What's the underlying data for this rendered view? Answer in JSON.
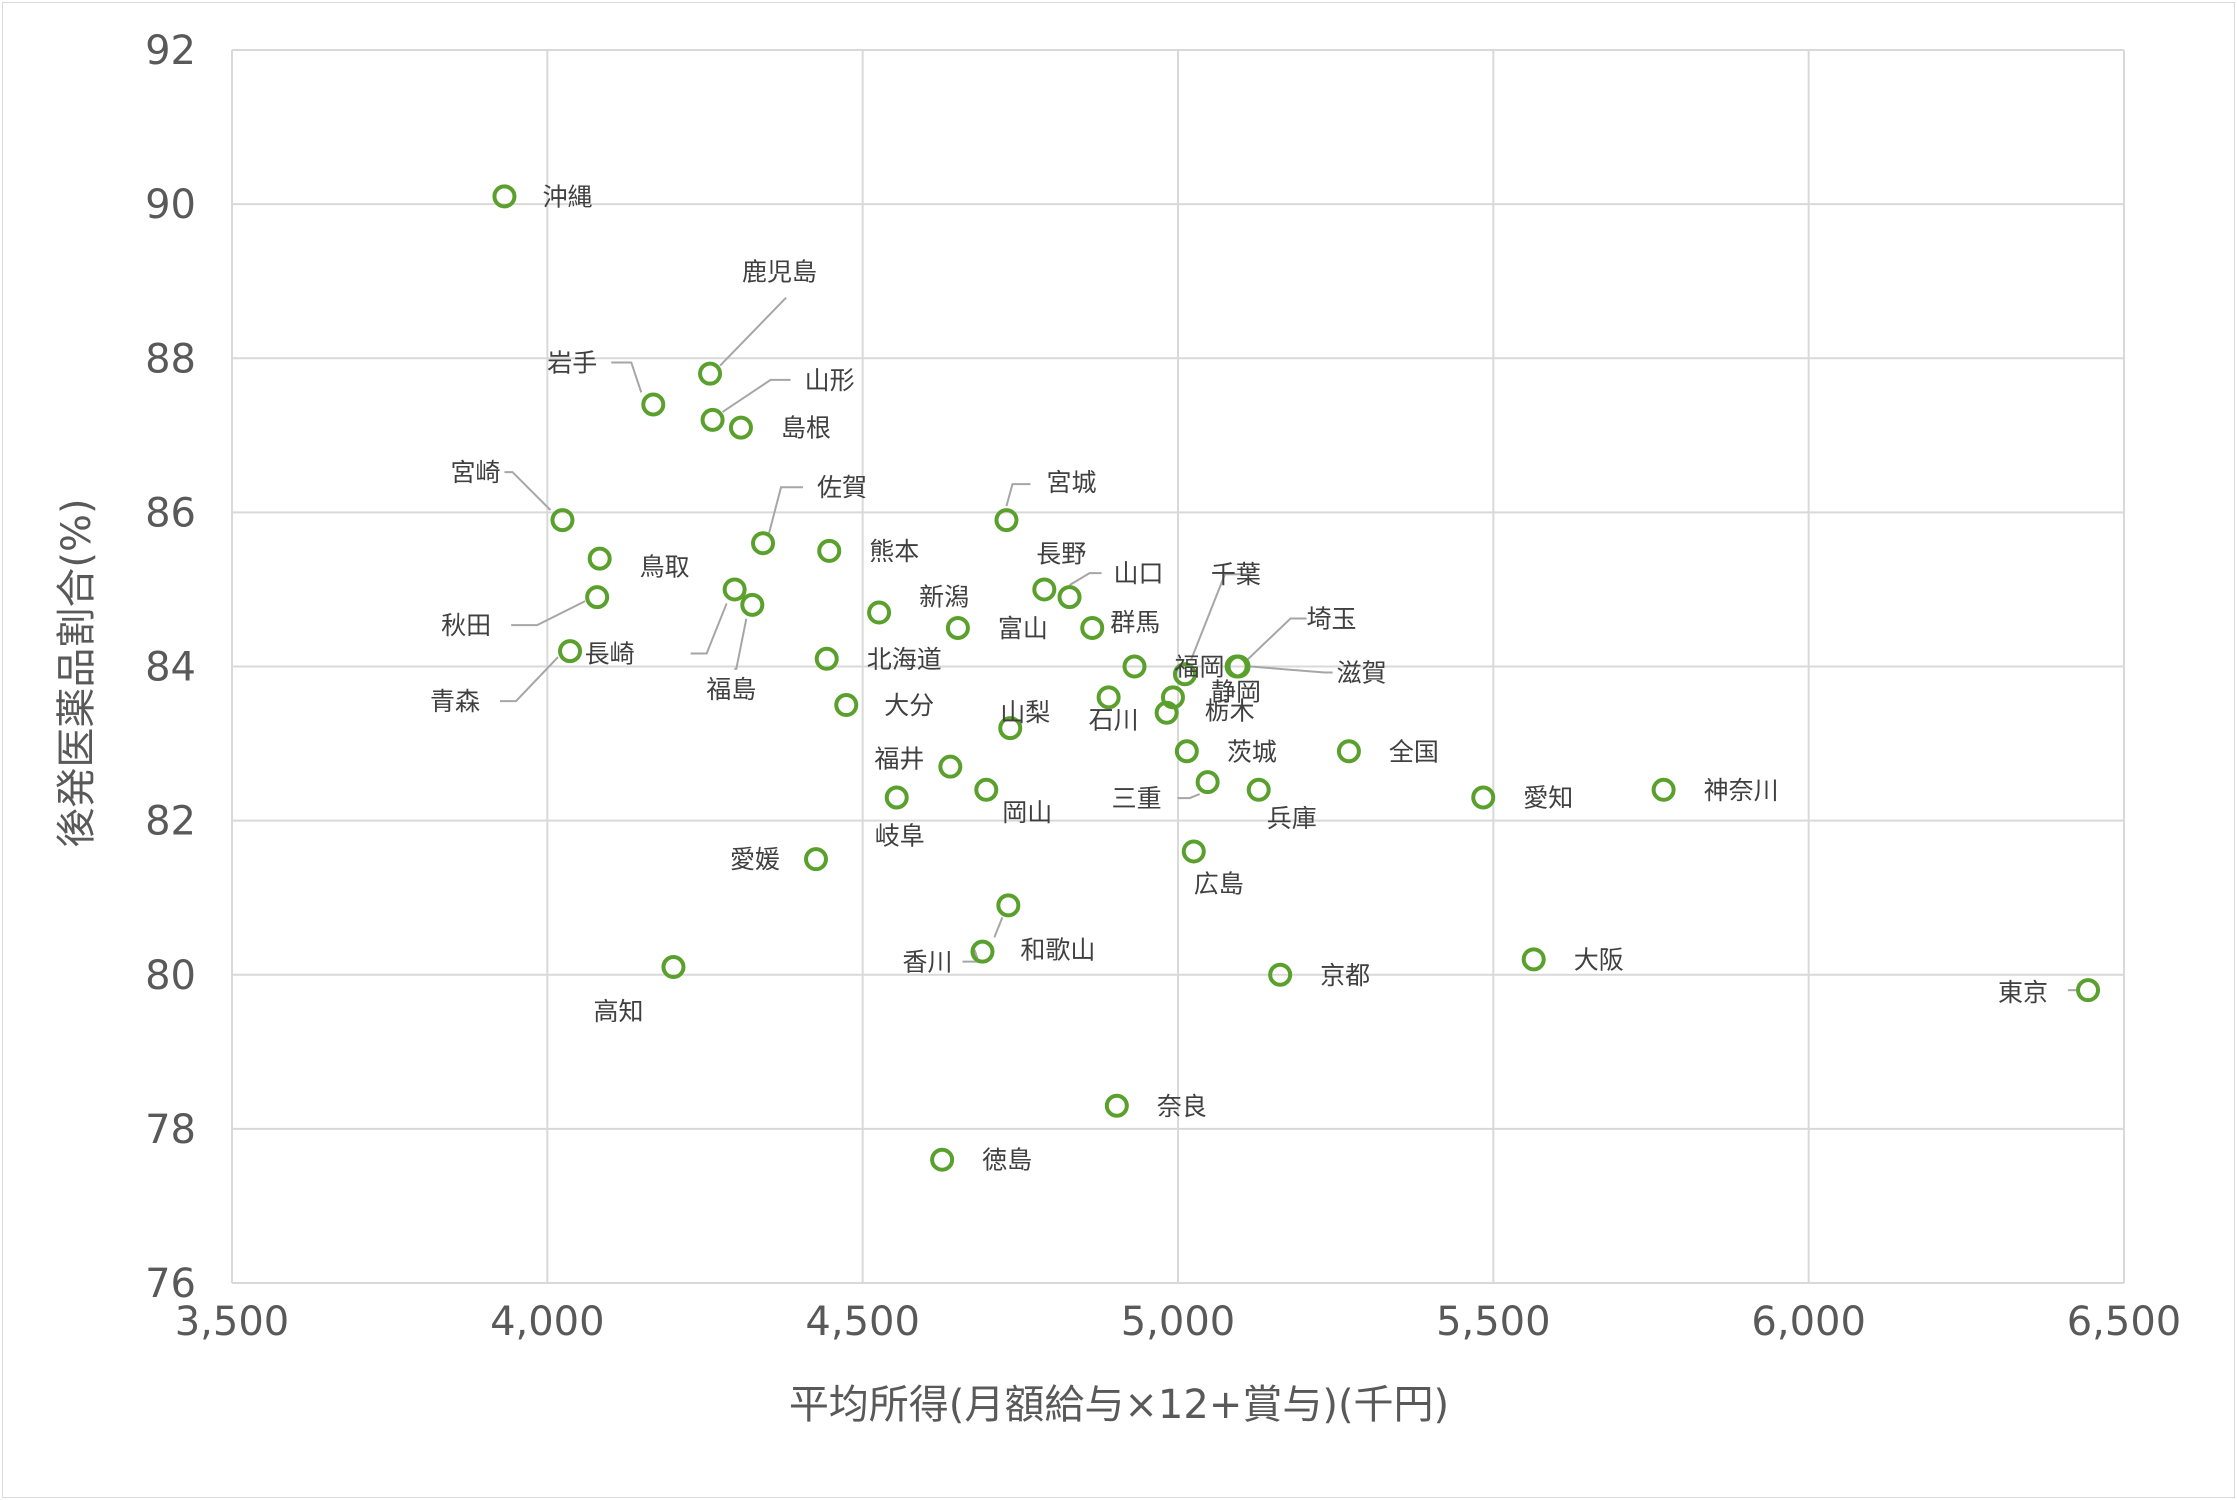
{
  "chart_data": {
    "type": "scatter",
    "title": "",
    "xlabel": "平均所得(月額給与×12+賞与)(千円)",
    "ylabel": "後発医薬品割合(%)",
    "xlim": [
      3500,
      6500
    ],
    "ylim": [
      76,
      92
    ],
    "x_ticks": [
      "3,500",
      "4,000",
      "4,500",
      "5,000",
      "5,500",
      "6,000",
      "6,500"
    ],
    "y_ticks": [
      "76",
      "78",
      "80",
      "82",
      "84",
      "86",
      "88",
      "90",
      "92"
    ],
    "grid": true,
    "legend": "none",
    "marker_color": "#5aa02c",
    "points": [
      {
        "label": "沖縄",
        "x": 3932,
        "y": 90.1
      },
      {
        "label": "鹿児島",
        "x": 4258,
        "y": 87.8
      },
      {
        "label": "岩手",
        "x": 4168,
        "y": 87.4
      },
      {
        "label": "山形",
        "x": 4262,
        "y": 87.2
      },
      {
        "label": "島根",
        "x": 4307,
        "y": 87.1
      },
      {
        "label": "宮崎",
        "x": 4024,
        "y": 85.9
      },
      {
        "label": "佐賀",
        "x": 4342,
        "y": 85.6
      },
      {
        "label": "宮城",
        "x": 4728,
        "y": 85.9
      },
      {
        "label": "熊本",
        "x": 4447,
        "y": 85.5
      },
      {
        "label": "鳥取",
        "x": 4083,
        "y": 85.4
      },
      {
        "label": "長野",
        "x": 4788,
        "y": 85.0
      },
      {
        "label": "山口",
        "x": 4828,
        "y": 84.9
      },
      {
        "label": "秋田",
        "x": 4079,
        "y": 84.9
      },
      {
        "label": "長崎",
        "x": 4297,
        "y": 85.0
      },
      {
        "label": "福島",
        "x": 4325,
        "y": 84.8
      },
      {
        "label": "新潟",
        "x": 4526,
        "y": 84.7
      },
      {
        "label": "富山",
        "x": 4651,
        "y": 84.5
      },
      {
        "label": "群馬",
        "x": 4864,
        "y": 84.5
      },
      {
        "label": "青森",
        "x": 4036,
        "y": 84.2
      },
      {
        "label": "北海道",
        "x": 4443,
        "y": 84.1
      },
      {
        "label": "千葉",
        "x": 5011,
        "y": 83.9
      },
      {
        "label": "福岡",
        "x": 4931,
        "y": 84.0
      },
      {
        "label": "埼玉",
        "x": 5096,
        "y": 84.0
      },
      {
        "label": "滋賀",
        "x": 5093,
        "y": 84.0
      },
      {
        "label": "静岡",
        "x": 4992,
        "y": 83.6
      },
      {
        "label": "石川",
        "x": 4890,
        "y": 83.6
      },
      {
        "label": "栃木",
        "x": 4982,
        "y": 83.4
      },
      {
        "label": "大分",
        "x": 4474,
        "y": 83.5
      },
      {
        "label": "山梨",
        "x": 4734,
        "y": 83.2
      },
      {
        "label": "茨城",
        "x": 5014,
        "y": 82.9
      },
      {
        "label": "全国",
        "x": 5271,
        "y": 82.9
      },
      {
        "label": "福井",
        "x": 4639,
        "y": 82.7
      },
      {
        "label": "三重",
        "x": 5047,
        "y": 82.5
      },
      {
        "label": "岡山",
        "x": 4696,
        "y": 82.4
      },
      {
        "label": "兵庫",
        "x": 5128,
        "y": 82.4
      },
      {
        "label": "神奈川",
        "x": 5770,
        "y": 82.4
      },
      {
        "label": "岐阜",
        "x": 4554,
        "y": 82.3
      },
      {
        "label": "愛知",
        "x": 5484,
        "y": 82.3
      },
      {
        "label": "愛媛",
        "x": 4426,
        "y": 81.5
      },
      {
        "label": "広島",
        "x": 5025,
        "y": 81.6
      },
      {
        "label": "和歌山",
        "x": 4731,
        "y": 80.9
      },
      {
        "label": "香川",
        "x": 4690,
        "y": 80.3
      },
      {
        "label": "大阪",
        "x": 5564,
        "y": 80.2
      },
      {
        "label": "高知",
        "x": 4200,
        "y": 80.1
      },
      {
        "label": "京都",
        "x": 5162,
        "y": 80.0
      },
      {
        "label": "東京",
        "x": 6443,
        "y": 79.8
      },
      {
        "label": "奈良",
        "x": 4903,
        "y": 78.3
      },
      {
        "label": "徳島",
        "x": 4626,
        "y": 77.6
      }
    ]
  }
}
